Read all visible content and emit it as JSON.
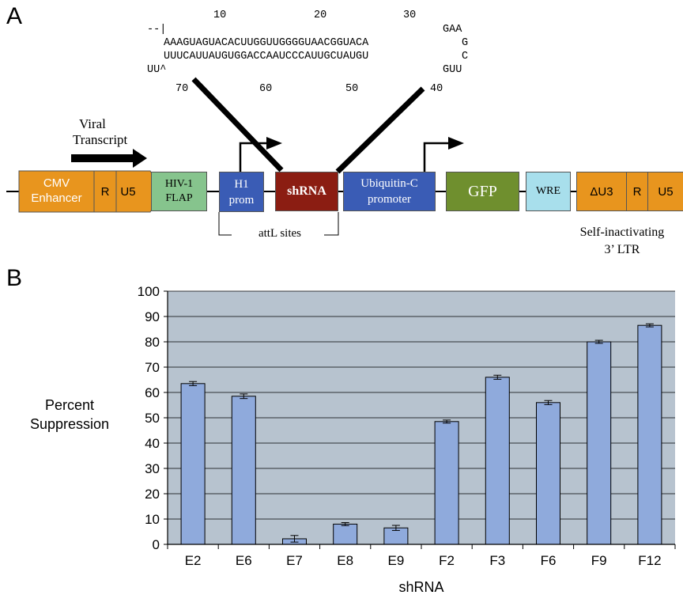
{
  "panels": {
    "a": "A",
    "b": "B"
  },
  "sequence": {
    "numbers_top": [
      "10",
      "20",
      "30"
    ],
    "line1": "--|",
    "line1_end": "GAA",
    "line2": "AAAGUAGUACACUUGGUUGGGGUAACGGUACA",
    "line2_end": "G",
    "line3": "UUUCAUUAUGUGGACCAAUCCCAUUGCUAUGU",
    "line3_end": "C",
    "line4": "UU^",
    "line4_end": "GUU",
    "numbers_bottom": [
      "70",
      "60",
      "50",
      "40"
    ]
  },
  "construct": {
    "viral_transcript": [
      "Viral",
      "Transcript"
    ],
    "cmv": [
      "CMV",
      "Enhancer"
    ],
    "r1": "R",
    "u5_1": "U5",
    "flap": [
      "HIV-1",
      "FLAP"
    ],
    "h1": [
      "H1",
      "prom"
    ],
    "shrna": "shRNA",
    "ubc": [
      "Ubiquitin-C",
      "promoter"
    ],
    "gfp": "GFP",
    "wre": "WRE",
    "du3": "ΔU3",
    "r2": "R",
    "u5_2": "U5",
    "attl": "attL sites",
    "ltr": [
      "Self-inactivating",
      "3’ LTR"
    ]
  },
  "colors": {
    "orange": "#e8951e",
    "green": "#86c48d",
    "blue": "#3a5cb5",
    "darkred": "#8b1d12",
    "olive": "#6f8f2e",
    "lightblue": "#a8dfec",
    "plot_bg": "#b7c3cf",
    "bar": "#8faadc"
  },
  "chart_data": {
    "type": "bar",
    "categories": [
      "E2",
      "E6",
      "E7",
      "E8",
      "E9",
      "F2",
      "F3",
      "F6",
      "F9",
      "F12"
    ],
    "values": [
      63.5,
      58.5,
      2.2,
      8,
      6.5,
      48.5,
      66,
      56,
      80,
      86.5
    ],
    "errors": [
      0.8,
      0.9,
      1.3,
      0.6,
      1.0,
      0.6,
      0.8,
      0.8,
      0.6,
      0.6
    ],
    "ylabel": [
      "Percent",
      "Suppression"
    ],
    "xlabel": "shRNA",
    "yticks": [
      "0",
      "10",
      "20",
      "30",
      "40",
      "50",
      "60",
      "70",
      "80",
      "90",
      "100"
    ],
    "ylim": [
      0,
      100
    ],
    "grid": true
  }
}
